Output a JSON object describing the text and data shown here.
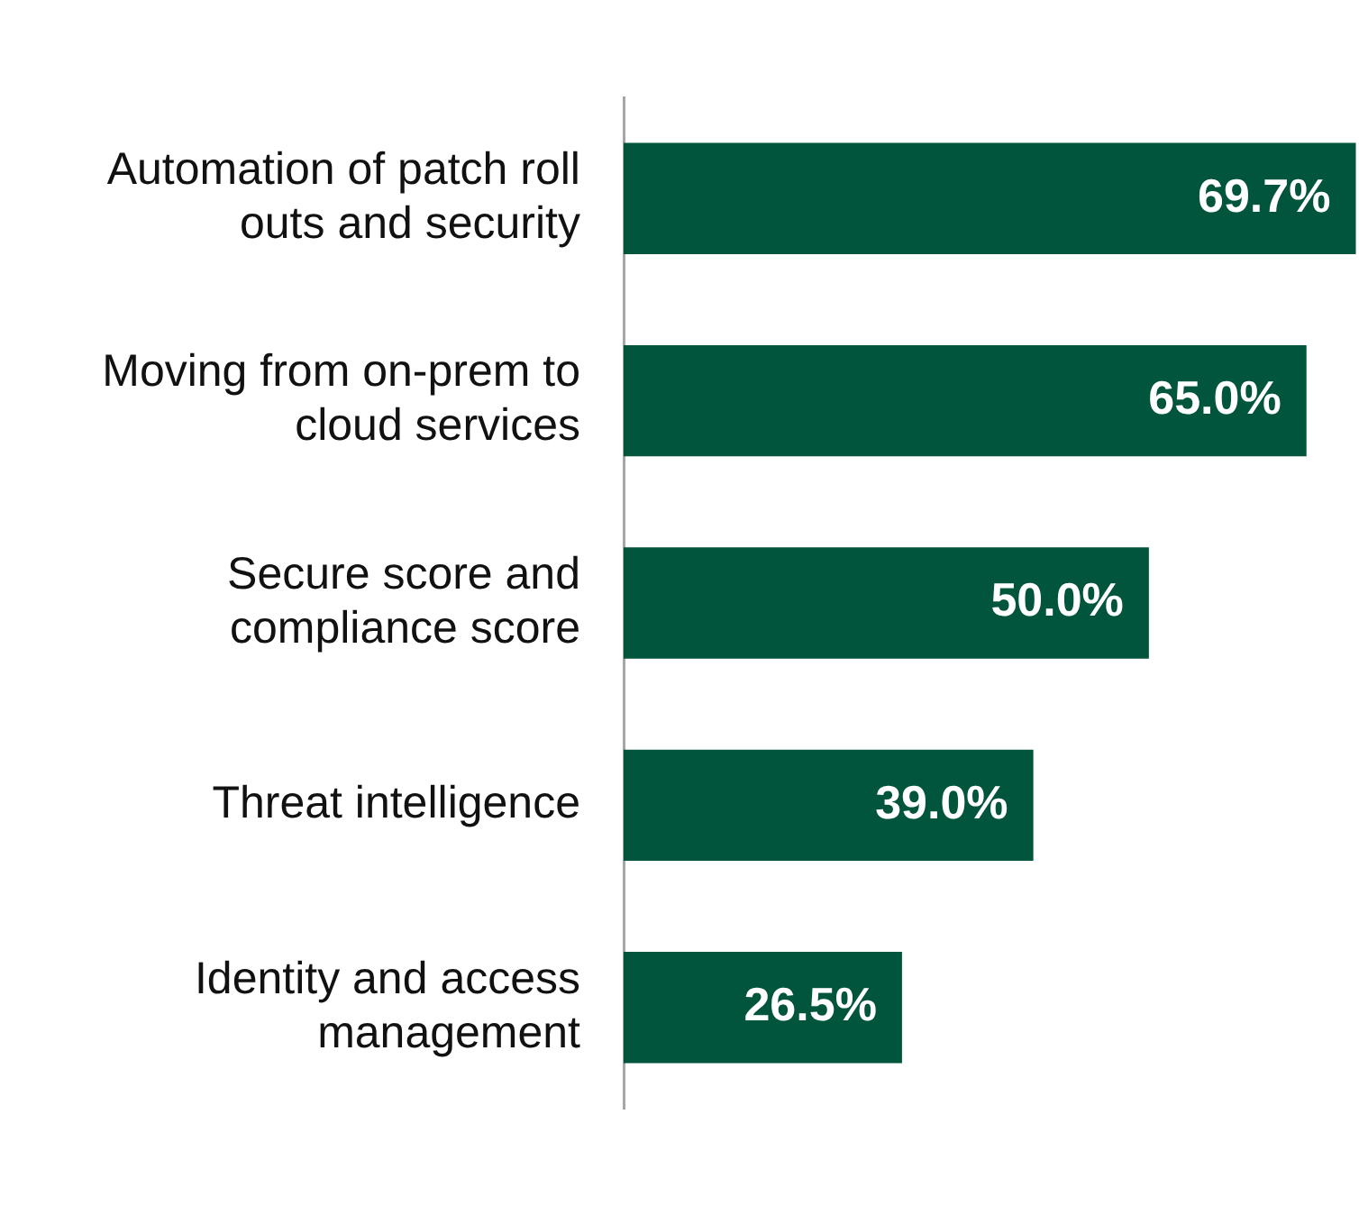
{
  "chart_data": {
    "type": "bar",
    "orientation": "horizontal",
    "categories": [
      "Automation of patch roll outs and security",
      "Moving from on-prem to cloud services",
      "Secure score and compliance score",
      "Threat intelligence",
      "Identity and access management"
    ],
    "values": [
      69.7,
      65.0,
      50.0,
      39.0,
      26.5
    ],
    "value_labels": [
      "69.7%",
      "65.0%",
      "50.0%",
      "39.0%",
      "26.5%"
    ],
    "color": "#02553d",
    "grid": false,
    "legend": false
  }
}
